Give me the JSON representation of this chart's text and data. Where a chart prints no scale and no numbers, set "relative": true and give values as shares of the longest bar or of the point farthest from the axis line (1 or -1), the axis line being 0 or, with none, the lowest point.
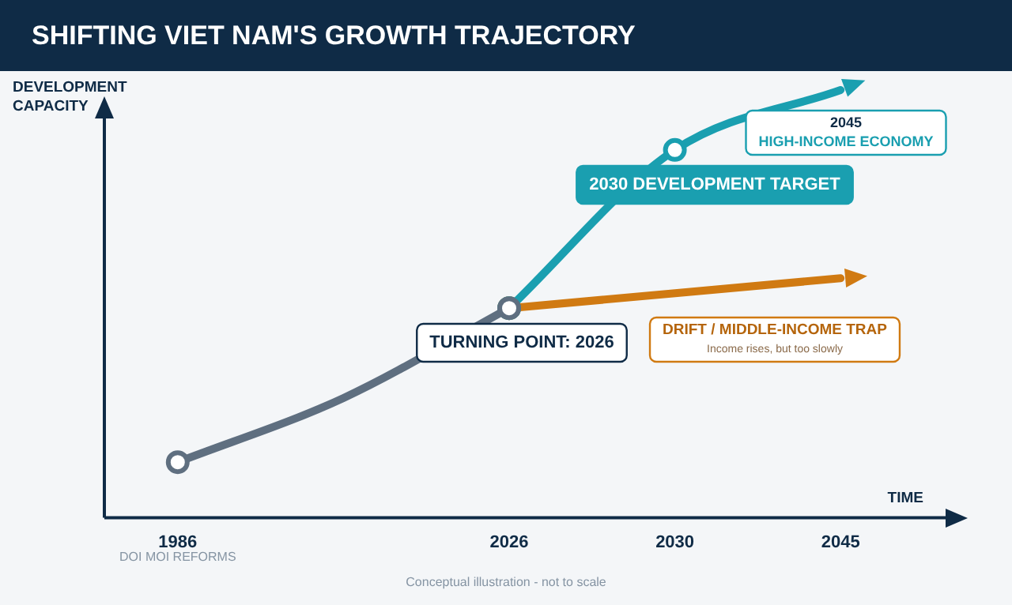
{
  "chart_data": {
    "type": "line",
    "title": "SHIFTING VIET NAM'S GROWTH TRAJECTORY",
    "xlabel": "TIME",
    "ylabel": "DEVELOPMENT CAPACITY",
    "relative": true,
    "marker": "circle",
    "line_style": "solid",
    "legend": false,
    "grid": false,
    "categories": [
      "1986",
      null,
      "2026",
      "2030",
      "2045"
    ],
    "series": [
      {
        "color": "#5f6f80",
        "values": [
          0.13,
          0.28,
          0.49,
          null,
          null
        ]
      },
      {
        "color": "#1a9fb0",
        "values": [
          null,
          null,
          0.49,
          0.86,
          1.0
        ]
      },
      {
        "color": "#d07a12",
        "values": [
          null,
          null,
          0.49,
          null,
          0.56
        ]
      }
    ],
    "annotations": [
      "TURNING POINT: 2026",
      "2030 DEVELOPMENT TARGET",
      "2045",
      "HIGH-INCOME ECONOMY",
      "DRIFT / MIDDLE-INCOME TRAP",
      "Income rises, but too slowly",
      "DOI MOI REFORMS",
      "Conceptual illustration - not to scale"
    ]
  }
}
